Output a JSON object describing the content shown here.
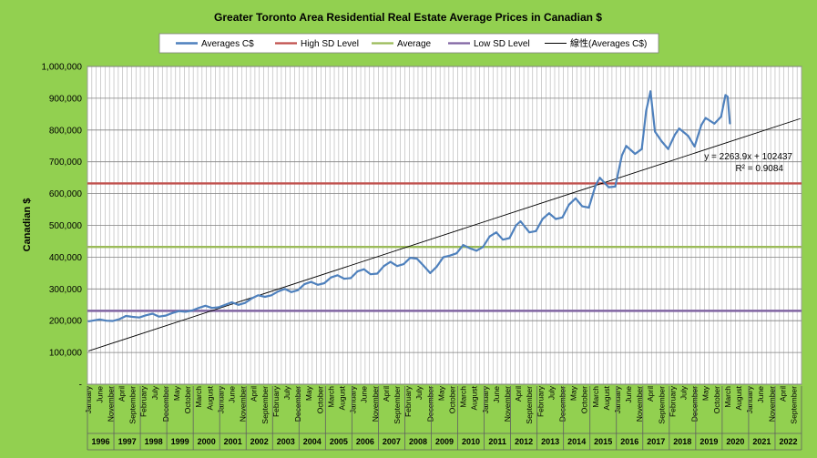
{
  "chart_data": {
    "type": "line",
    "title": "Greater Toronto Area Residential Real Estate Average Prices in Canadian $",
    "ylabel": "Canadian $",
    "xlabel": "",
    "ylim": [
      0,
      1000000
    ],
    "y_ticks": [
      0,
      100000,
      200000,
      300000,
      400000,
      500000,
      600000,
      700000,
      800000,
      900000,
      1000000
    ],
    "y_tick_labels": [
      "-",
      "100,000",
      "200,000",
      "300,000",
      "400,000",
      "500,000",
      "600,000",
      "700,000",
      "800,000",
      "900,000",
      "1,000,000"
    ],
    "x_start": "1996-01",
    "x_end": "2022-12",
    "years": [
      "1996",
      "1997",
      "1998",
      "1999",
      "2000",
      "2001",
      "2002",
      "2003",
      "2004",
      "2005",
      "2006",
      "2007",
      "2008",
      "2009",
      "2010",
      "2011",
      "2012",
      "2013",
      "2014",
      "2015",
      "2016",
      "2017",
      "2018",
      "2019",
      "2020",
      "2021",
      "2022"
    ],
    "month_labels": [
      "January",
      "June",
      "November",
      "April",
      "September",
      "February",
      "July",
      "December",
      "May",
      "October",
      "March",
      "August"
    ],
    "grid": true,
    "legend_position": "top",
    "legend": [
      "Averages C$",
      "High SD Level",
      "Average",
      "Low SD Level",
      "線性(Averages C$)"
    ],
    "series": [
      {
        "name": "Averages C$",
        "color": "#4f81bd",
        "points": [
          [
            "1996-01",
            198000
          ],
          [
            "1996-06",
            204000
          ],
          [
            "1996-09",
            200000
          ],
          [
            "1996-12",
            199000
          ],
          [
            "1997-03",
            205000
          ],
          [
            "1997-06",
            215000
          ],
          [
            "1997-09",
            212000
          ],
          [
            "1997-12",
            210000
          ],
          [
            "1998-03",
            217000
          ],
          [
            "1998-06",
            222000
          ],
          [
            "1998-09",
            213000
          ],
          [
            "1998-12",
            216000
          ],
          [
            "1999-03",
            224000
          ],
          [
            "1999-06",
            230000
          ],
          [
            "1999-09",
            228000
          ],
          [
            "1999-12",
            232000
          ],
          [
            "2000-03",
            240000
          ],
          [
            "2000-06",
            247000
          ],
          [
            "2000-09",
            240000
          ],
          [
            "2000-12",
            242000
          ],
          [
            "2001-03",
            250000
          ],
          [
            "2001-06",
            258000
          ],
          [
            "2001-09",
            250000
          ],
          [
            "2001-12",
            256000
          ],
          [
            "2002-03",
            270000
          ],
          [
            "2002-06",
            280000
          ],
          [
            "2002-09",
            275000
          ],
          [
            "2002-12",
            280000
          ],
          [
            "2003-03",
            292000
          ],
          [
            "2003-06",
            300000
          ],
          [
            "2003-09",
            290000
          ],
          [
            "2003-12",
            296000
          ],
          [
            "2004-03",
            315000
          ],
          [
            "2004-06",
            322000
          ],
          [
            "2004-09",
            313000
          ],
          [
            "2004-12",
            318000
          ],
          [
            "2005-03",
            336000
          ],
          [
            "2005-06",
            343000
          ],
          [
            "2005-09",
            332000
          ],
          [
            "2005-12",
            334000
          ],
          [
            "2006-03",
            355000
          ],
          [
            "2006-06",
            362000
          ],
          [
            "2006-09",
            346000
          ],
          [
            "2006-12",
            348000
          ],
          [
            "2007-03",
            372000
          ],
          [
            "2007-06",
            385000
          ],
          [
            "2007-09",
            372000
          ],
          [
            "2007-12",
            378000
          ],
          [
            "2008-03",
            398000
          ],
          [
            "2008-06",
            395000
          ],
          [
            "2008-09",
            373000
          ],
          [
            "2008-12",
            350000
          ],
          [
            "2009-03",
            370000
          ],
          [
            "2009-06",
            400000
          ],
          [
            "2009-09",
            405000
          ],
          [
            "2009-12",
            412000
          ],
          [
            "2010-03",
            438000
          ],
          [
            "2010-06",
            428000
          ],
          [
            "2010-09",
            420000
          ],
          [
            "2010-12",
            432000
          ],
          [
            "2011-03",
            465000
          ],
          [
            "2011-06",
            478000
          ],
          [
            "2011-09",
            455000
          ],
          [
            "2011-12",
            460000
          ],
          [
            "2012-03",
            500000
          ],
          [
            "2012-05",
            513000
          ],
          [
            "2012-09",
            478000
          ],
          [
            "2012-12",
            482000
          ],
          [
            "2013-03",
            520000
          ],
          [
            "2013-06",
            538000
          ],
          [
            "2013-09",
            520000
          ],
          [
            "2013-12",
            525000
          ],
          [
            "2014-03",
            565000
          ],
          [
            "2014-06",
            585000
          ],
          [
            "2014-09",
            560000
          ],
          [
            "2014-12",
            556000
          ],
          [
            "2015-03",
            625000
          ],
          [
            "2015-05",
            650000
          ],
          [
            "2015-09",
            620000
          ],
          [
            "2015-12",
            622000
          ],
          [
            "2016-03",
            720000
          ],
          [
            "2016-05",
            750000
          ],
          [
            "2016-09",
            725000
          ],
          [
            "2016-12",
            740000
          ],
          [
            "2017-02",
            860000
          ],
          [
            "2017-04",
            922000
          ],
          [
            "2017-06",
            795000
          ],
          [
            "2017-09",
            765000
          ],
          [
            "2017-12",
            740000
          ],
          [
            "2018-03",
            785000
          ],
          [
            "2018-05",
            805000
          ],
          [
            "2018-09",
            782000
          ],
          [
            "2018-12",
            748000
          ],
          [
            "2019-03",
            815000
          ],
          [
            "2019-05",
            838000
          ],
          [
            "2019-09",
            820000
          ],
          [
            "2019-12",
            842000
          ],
          [
            "2020-02",
            910000
          ],
          [
            "2020-03",
            905000
          ],
          [
            "2020-04",
            820000
          ]
        ]
      },
      {
        "name": "High SD Level",
        "color": "#c0504d",
        "value": 632000
      },
      {
        "name": "Average",
        "color": "#9bbb59",
        "value": 432000
      },
      {
        "name": "Low SD Level",
        "color": "#8064a2",
        "value": 231000
      },
      {
        "name": "線性(Averages C$)",
        "color": "#000000",
        "slope_per_month": 2263.9,
        "intercept": 102437,
        "equation": "y = 2263.9x + 102437",
        "r2": "R² = 0.9084"
      }
    ]
  }
}
